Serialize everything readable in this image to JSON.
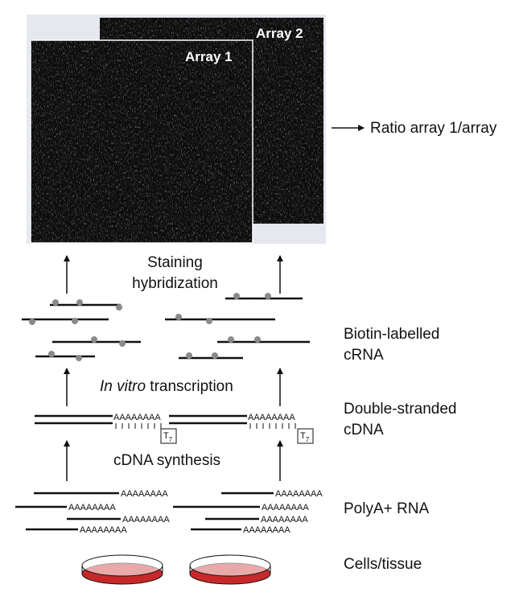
{
  "arrays": {
    "array1_label": "Array 1",
    "array2_label": "Array 2"
  },
  "output": {
    "ratio_label": "Ratio array 1/array"
  },
  "steps": {
    "staining_line1": "Staining",
    "staining_line2": "hybridization",
    "ivt_italic": "In vitro",
    "ivt_rest": " transcription",
    "cdna_synthesis": "cDNA synthesis"
  },
  "right_labels": {
    "biotin_line1": "Biotin-labelled",
    "biotin_line2": "cRNA",
    "ds_line1": "Double-stranded",
    "ds_line2": "cDNA",
    "polya": "PolyA+ RNA",
    "cells": "Cells/tissue"
  },
  "sequence": {
    "polya_tail": "AAAAAAAA",
    "t7_main": "T",
    "t7_sub": "7"
  },
  "colors": {
    "array_bg": "#0d0d0d",
    "panel_bg": "#e6e8f0",
    "dish_red": "#c8282a",
    "dot_gray": "#8a8a8a"
  }
}
